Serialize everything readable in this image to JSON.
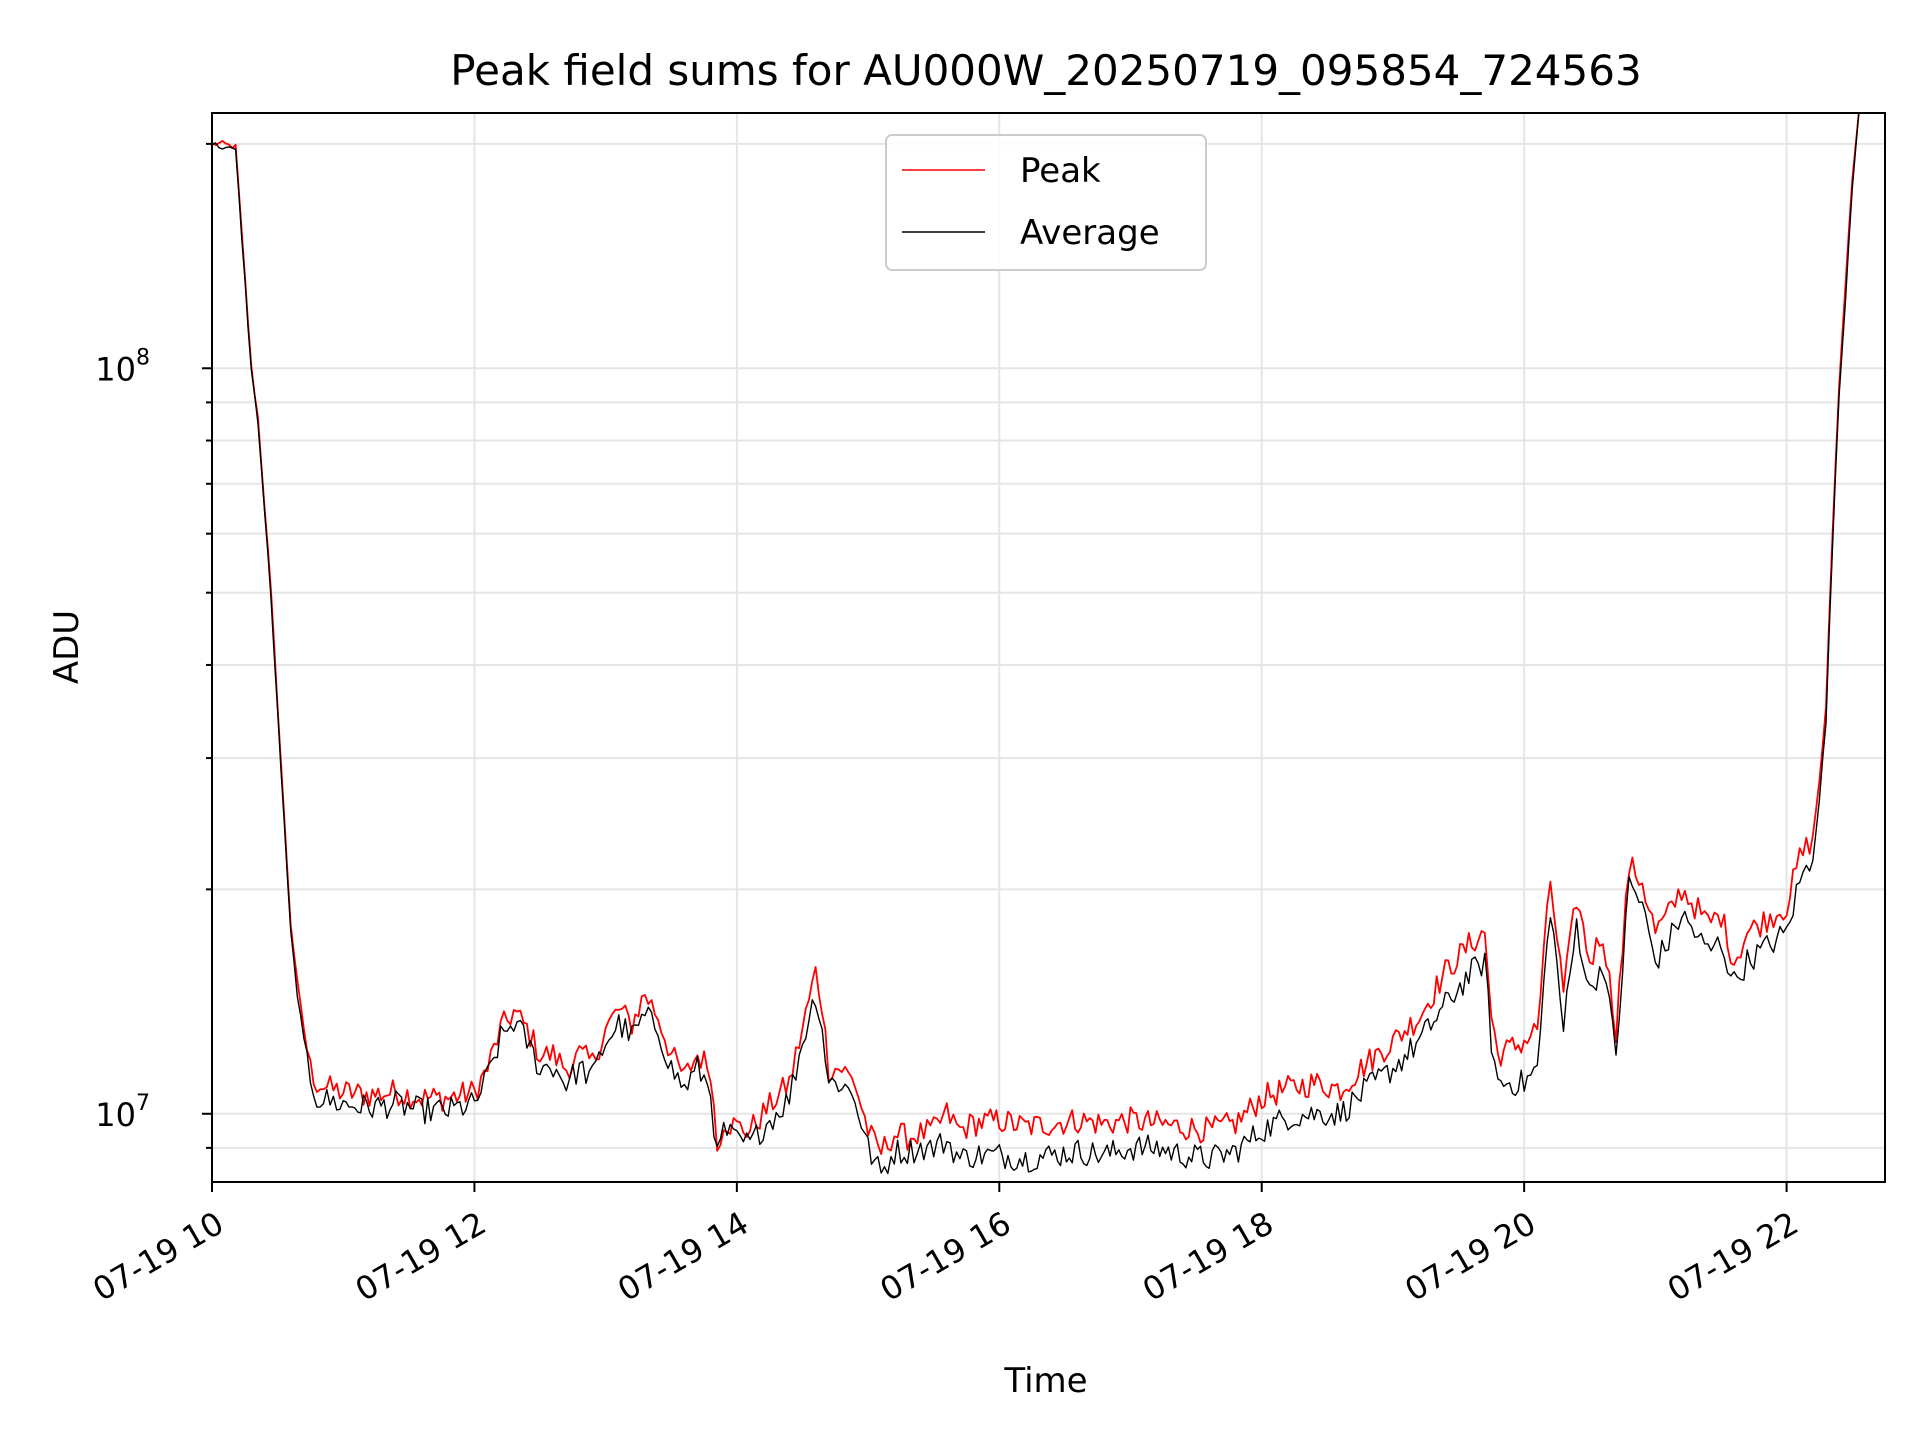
{
  "chart_data": {
    "type": "line",
    "title": "Peak field sums for AU000W_20250719_095854_724563",
    "xlabel": "Time",
    "ylabel": "ADU",
    "x_unit": "hours of 2025-07-19",
    "xlim": [
      10.0,
      22.75
    ],
    "ylim": [
      8100000,
      220000000
    ],
    "yscale": "log",
    "grid": true,
    "legend_position": "top-center",
    "x_ticks": [
      {
        "value": 10,
        "label": "07-19 10"
      },
      {
        "value": 12,
        "label": "07-19 12"
      },
      {
        "value": 14,
        "label": "07-19 14"
      },
      {
        "value": 16,
        "label": "07-19 16"
      },
      {
        "value": 18,
        "label": "07-19 18"
      },
      {
        "value": 20,
        "label": "07-19 20"
      },
      {
        "value": 22,
        "label": "07-19 22"
      }
    ],
    "y_major_ticks": [
      {
        "value": 10000000,
        "base": "10",
        "exp": "7"
      },
      {
        "value": 100000000,
        "base": "10",
        "exp": "8"
      }
    ],
    "series": [
      {
        "name": "Peak",
        "color": "#ff0000",
        "x": [
          10.0,
          10.08,
          10.18,
          10.3,
          10.35,
          10.45,
          10.55,
          10.6,
          10.65,
          10.7,
          10.75,
          10.8,
          10.9,
          11.0,
          11.2,
          11.4,
          11.6,
          11.8,
          12.0,
          12.1,
          12.2,
          12.3,
          12.4,
          12.5,
          12.6,
          12.7,
          12.8,
          12.9,
          13.0,
          13.1,
          13.2,
          13.3,
          13.4,
          13.5,
          13.6,
          13.7,
          13.8,
          13.85,
          13.9,
          14.0,
          14.1,
          14.2,
          14.3,
          14.4,
          14.5,
          14.6,
          14.65,
          14.7,
          14.8,
          14.9,
          15.0,
          15.05,
          15.1,
          15.2,
          15.3,
          15.4,
          15.5,
          15.6,
          15.7,
          15.8,
          16.0,
          16.2,
          16.4,
          16.6,
          16.8,
          17.0,
          17.2,
          17.4,
          17.6,
          17.8,
          18.0,
          18.2,
          18.4,
          18.6,
          18.8,
          19.0,
          19.2,
          19.4,
          19.6,
          19.7,
          19.75,
          19.8,
          20.0,
          20.1,
          20.2,
          20.3,
          20.4,
          20.5,
          20.6,
          20.7,
          20.8,
          20.9,
          21.0,
          21.1,
          21.2,
          21.3,
          21.4,
          21.5,
          21.6,
          21.7,
          21.8,
          21.9,
          22.0,
          22.1,
          22.2,
          22.25,
          22.3,
          22.35,
          22.4,
          22.45,
          22.5,
          22.55
        ],
        "y": [
          200000000.0,
          200000000.0,
          198000000.0,
          100000000.0,
          86000000.0,
          50000000.0,
          25000000.0,
          18000000.0,
          15000000.0,
          13000000.0,
          11500000.0,
          11000000.0,
          10800000.0,
          10700000.0,
          10600000.0,
          10700000.0,
          10500000.0,
          10500000.0,
          10700000.0,
          11500000.0,
          13000000.0,
          13700000.0,
          13000000.0,
          12000000.0,
          12000000.0,
          11500000.0,
          12000000.0,
          11700000.0,
          13000000.0,
          13800000.0,
          13200000.0,
          14500000.0,
          13500000.0,
          12000000.0,
          11200000.0,
          12000000.0,
          11500000.0,
          9000000.0,
          9800000.0,
          9600000.0,
          9500000.0,
          10000000.0,
          10500000.0,
          11000000.0,
          13000000.0,
          15500000.0,
          14000000.0,
          11500000.0,
          11500000.0,
          11000000.0,
          9500000.0,
          9100000.0,
          8900000.0,
          9400000.0,
          9300000.0,
          9400000.0,
          9500000.0,
          10000000.0,
          9500000.0,
          9700000.0,
          9800000.0,
          9600000.0,
          9700000.0,
          9800000.0,
          9700000.0,
          9800000.0,
          9700000.0,
          9600000.0,
          9500000.0,
          9700000.0,
          10500000.0,
          10800000.0,
          11000000.0,
          10800000.0,
          11700000.0,
          12500000.0,
          13500000.0,
          15500000.0,
          17000000.0,
          17500000.0,
          13500000.0,
          12000000.0,
          12500000.0,
          13000000.0,
          20500000.0,
          14500000.0,
          19500000.0,
          16000000.0,
          17500000.0,
          13000000.0,
          21500000.0,
          20500000.0,
          17500000.0,
          18500000.0,
          20000000.0,
          19000000.0,
          18000000.0,
          18500000.0,
          16000000.0,
          17500000.0,
          18000000.0,
          18500000.0,
          19000000.0,
          22000000.0,
          23500000.0,
          28000000.0,
          35000000.0,
          60000000.0,
          95000000.0,
          130000000.0,
          180000000.0,
          220000000.0
        ]
      },
      {
        "name": "Average",
        "color": "#000000",
        "x": [
          10.0,
          10.08,
          10.18,
          10.3,
          10.35,
          10.45,
          10.55,
          10.6,
          10.65,
          10.7,
          10.75,
          10.8,
          10.9,
          11.0,
          11.2,
          11.4,
          11.6,
          11.8,
          12.0,
          12.1,
          12.2,
          12.3,
          12.4,
          12.5,
          12.6,
          12.7,
          12.8,
          12.9,
          13.0,
          13.1,
          13.2,
          13.3,
          13.4,
          13.5,
          13.6,
          13.7,
          13.8,
          13.85,
          13.9,
          14.0,
          14.1,
          14.2,
          14.3,
          14.4,
          14.5,
          14.6,
          14.65,
          14.7,
          14.8,
          14.9,
          15.0,
          15.05,
          15.1,
          15.2,
          15.3,
          15.4,
          15.5,
          15.6,
          15.7,
          15.8,
          16.0,
          16.2,
          16.4,
          16.6,
          16.8,
          17.0,
          17.2,
          17.4,
          17.6,
          17.8,
          18.0,
          18.2,
          18.4,
          18.6,
          18.8,
          19.0,
          19.2,
          19.4,
          19.6,
          19.7,
          19.75,
          19.8,
          20.0,
          20.1,
          20.2,
          20.3,
          20.4,
          20.5,
          20.6,
          20.7,
          20.8,
          20.9,
          21.0,
          21.1,
          21.2,
          21.3,
          21.4,
          21.5,
          21.6,
          21.7,
          21.8,
          21.9,
          22.0,
          22.1,
          22.2,
          22.25,
          22.3,
          22.35,
          22.4,
          22.45,
          22.5,
          22.55
        ],
        "y": [
          200000000.0,
          198000000.0,
          196000000.0,
          99000000.0,
          85000000.0,
          49000000.0,
          24500000.0,
          17500000.0,
          14500000.0,
          12500000.0,
          11200000.0,
          10500000.0,
          10400000.0,
          10300000.0,
          10200000.0,
          10300000.0,
          10100000.0,
          10100000.0,
          10300000.0,
          11200000.0,
          12600000.0,
          13300000.0,
          12500000.0,
          11500000.0,
          11600000.0,
          11000000.0,
          11500000.0,
          11200000.0,
          12500000.0,
          13200000.0,
          12700000.0,
          13500000.0,
          13000000.0,
          11500000.0,
          10800000.0,
          11500000.0,
          10800000.0,
          8700000.0,
          9500000.0,
          9200000.0,
          9100000.0,
          9600000.0,
          10000000.0,
          10500000.0,
          12500000.0,
          14500000.0,
          13000000.0,
          11000000.0,
          11000000.0,
          10500000.0,
          9000000.0,
          8600000.0,
          8300000.0,
          8900000.0,
          8900000.0,
          9000000.0,
          9000000.0,
          9200000.0,
          8700000.0,
          8800000.0,
          8800000.0,
          8700000.0,
          8800000.0,
          8900000.0,
          8800000.0,
          9000000.0,
          9000000.0,
          8800000.0,
          8700000.0,
          8900000.0,
          9500000.0,
          9900000.0,
          10000000.0,
          10000000.0,
          10800000.0,
          11500000.0,
          12500000.0,
          14000000.0,
          15500000.0,
          16000000.0,
          12500000.0,
          11000000.0,
          11000000.0,
          11500000.0,
          19000000.0,
          13000000.0,
          18000000.0,
          14500000.0,
          16000000.0,
          12000000.0,
          20500000.0,
          19000000.0,
          16000000.0,
          17000000.0,
          18500000.0,
          17500000.0,
          16500000.0,
          17000000.0,
          15000000.0,
          16000000.0,
          16500000.0,
          17000000.0,
          17500000.0,
          20500000.0,
          22000000.0,
          26500000.0,
          33500000.0,
          58000000.0,
          92000000.0,
          125000000.0,
          175000000.0,
          220000000.0
        ]
      }
    ]
  }
}
